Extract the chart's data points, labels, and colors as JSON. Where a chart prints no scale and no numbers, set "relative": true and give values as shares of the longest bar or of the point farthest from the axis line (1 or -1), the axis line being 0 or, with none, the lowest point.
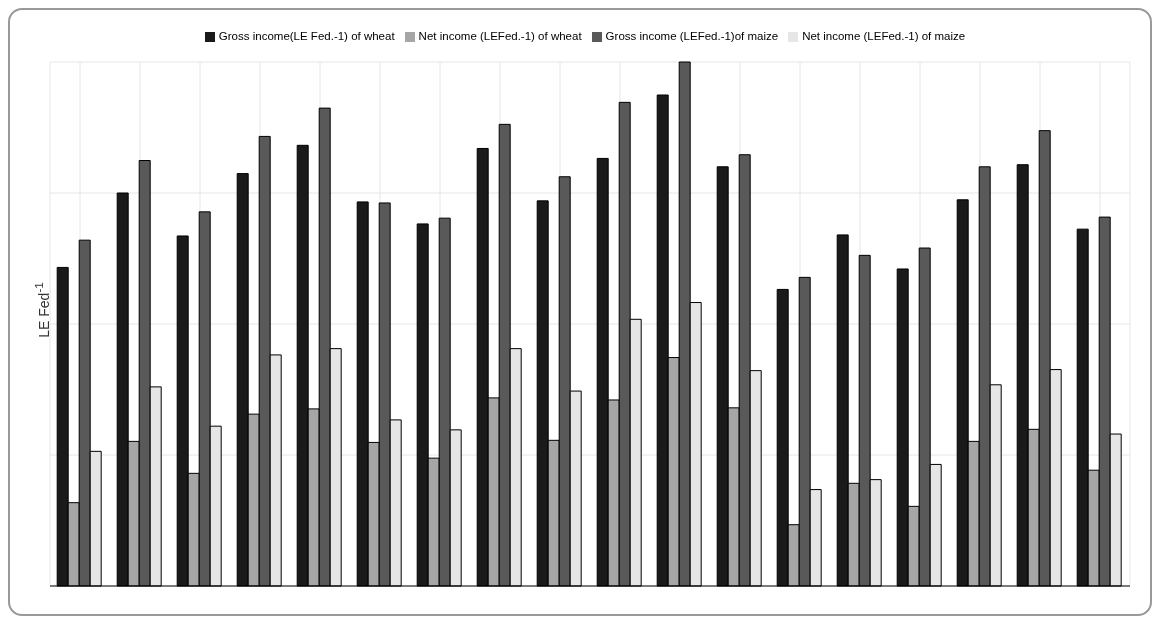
{
  "chart_data": {
    "type": "bar",
    "ylabel": "LE Fed$^{-1}$",
    "relative": true,
    "grid": true,
    "legend": "top",
    "categories": [
      null,
      null,
      null,
      null,
      null,
      null,
      null,
      null,
      null,
      null,
      null,
      null,
      null,
      null,
      null,
      null,
      null,
      null
    ],
    "series": [
      {
        "name": "Gross income(LE Fed.-1) of wheat",
        "color": "#1a1a1a",
        "values": [
          0.608,
          0.75,
          0.668,
          0.787,
          0.841,
          0.733,
          0.691,
          0.835,
          0.735,
          0.816,
          0.937,
          0.8,
          0.566,
          0.67,
          0.605,
          0.737,
          0.804,
          0.681
        ]
      },
      {
        "name": "Net income (LEFed.-1) of wheat",
        "color": "#a6a6a6",
        "values": [
          0.159,
          0.276,
          0.215,
          0.328,
          0.338,
          0.274,
          0.244,
          0.359,
          0.278,
          0.355,
          0.436,
          0.34,
          0.117,
          0.196,
          0.152,
          0.276,
          0.299,
          0.221
        ]
      },
      {
        "name": "Gross income (LEFed.-1)of maize",
        "color": "#595959",
        "values": [
          0.66,
          0.812,
          0.714,
          0.858,
          0.912,
          0.731,
          0.702,
          0.881,
          0.781,
          0.923,
          1,
          0.823,
          0.589,
          0.631,
          0.645,
          0.8,
          0.869,
          0.704
        ]
      },
      {
        "name": "Net income (LEFed.-1) of maize",
        "color": "#e6e6e6",
        "values": [
          0.257,
          0.38,
          0.305,
          0.441,
          0.453,
          0.317,
          0.298,
          0.453,
          0.372,
          0.509,
          0.541,
          0.411,
          0.184,
          0.203,
          0.232,
          0.384,
          0.413,
          0.29
        ]
      }
    ]
  }
}
